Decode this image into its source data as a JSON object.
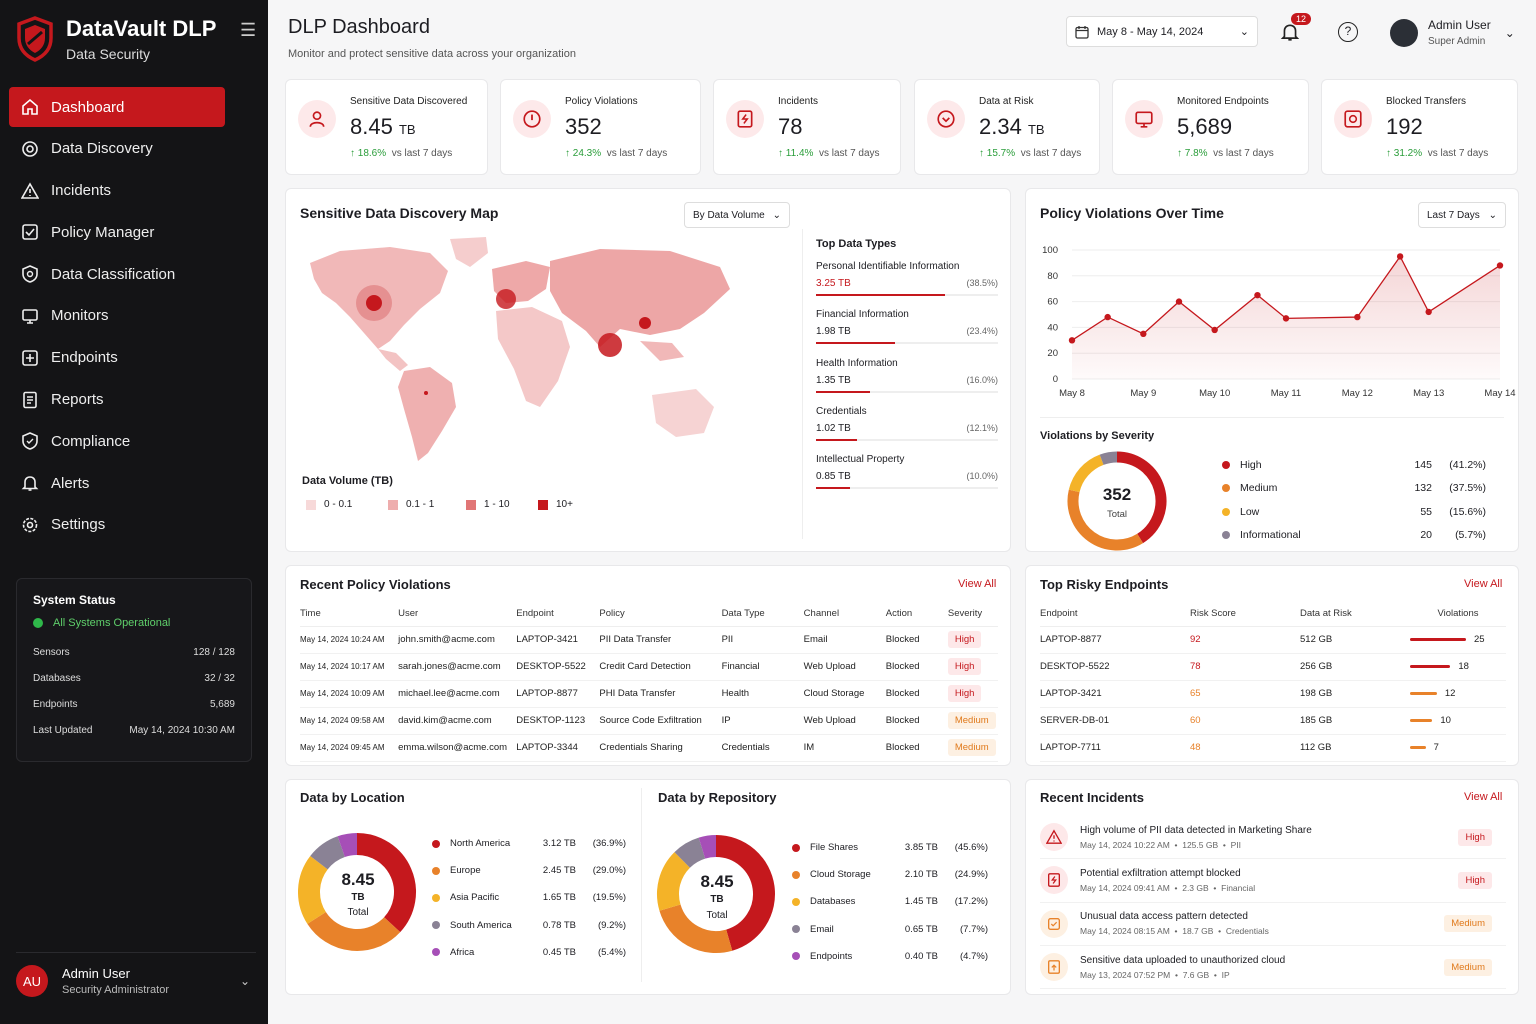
{
  "brand": {
    "title": "DataVault DLP",
    "subtitle": "Data Security"
  },
  "nav": [
    {
      "label": "Dashboard",
      "icon": "home-icon"
    },
    {
      "label": "Data Discovery",
      "icon": "discovery-icon"
    },
    {
      "label": "Incidents",
      "icon": "warning-icon"
    },
    {
      "label": "Policy Manager",
      "icon": "policy-icon"
    },
    {
      "label": "Data Classification",
      "icon": "classification-icon"
    },
    {
      "label": "Monitors",
      "icon": "monitor-icon"
    },
    {
      "label": "Endpoints",
      "icon": "endpoint-icon"
    },
    {
      "label": "Reports",
      "icon": "report-icon"
    },
    {
      "label": "Compliance",
      "icon": "compliance-icon"
    },
    {
      "label": "Alerts",
      "icon": "bell-icon"
    },
    {
      "label": "Settings",
      "icon": "gear-icon"
    }
  ],
  "system_status": {
    "title": "System Status",
    "state": "All Systems Operational",
    "rows": [
      [
        "Sensors",
        "128 / 128"
      ],
      [
        "Databases",
        "32 / 32"
      ],
      [
        "Endpoints",
        "5,689"
      ],
      [
        "Last Updated",
        "May 14, 2024 10:30 AM"
      ]
    ]
  },
  "sidebar_user": {
    "initials": "AU",
    "name": "Admin User",
    "role": "Security Administrator"
  },
  "header": {
    "title": "DLP Dashboard",
    "subtitle": "Monitor and protect sensitive data across your organization",
    "date_range": "May 8 - May 14, 2024",
    "notif_count": "12",
    "user_name": "Admin User",
    "user_role": "Super Admin"
  },
  "kpis": [
    {
      "label": "Sensitive Data Discovered",
      "value": "8.45",
      "unit": "TB",
      "trend": "18.6%",
      "trend_note": "vs last 7 days",
      "icon": "user-data-icon"
    },
    {
      "label": "Policy Violations",
      "value": "352",
      "unit": "",
      "trend": "24.3%",
      "trend_note": "vs last 7 days",
      "icon": "shield-alert-icon"
    },
    {
      "label": "Incidents",
      "value": "78",
      "unit": "",
      "trend": "11.4%",
      "trend_note": "vs last 7 days",
      "icon": "incident-file-icon"
    },
    {
      "label": "Data at Risk",
      "value": "2.34",
      "unit": "TB",
      "trend": "15.7%",
      "trend_note": "vs last 7 days",
      "icon": "risk-shield-icon"
    },
    {
      "label": "Monitored Endpoints",
      "value": "5,689",
      "unit": "",
      "trend": "7.8%",
      "trend_note": "vs last 7 days",
      "icon": "monitor-icon"
    },
    {
      "label": "Blocked Transfers",
      "value": "192",
      "unit": "",
      "trend": "31.2%",
      "trend_note": "vs last 7 days",
      "icon": "blocked-transfer-icon"
    }
  ],
  "map": {
    "title": "Sensitive Data Discovery Map",
    "selector": "By Data Volume",
    "legend_title": "Data Volume (TB)",
    "legend": [
      "0 - 0.1",
      "0.1 - 1",
      "1 - 10",
      "10+"
    ],
    "top_types_title": "Top Data Types",
    "top_types": [
      {
        "name": "Personal Identifiable Information",
        "value": "3.25 TB",
        "pct": "(38.5%)",
        "share": 38.5
      },
      {
        "name": "Financial Information",
        "value": "1.98 TB",
        "pct": "(23.4%)",
        "share": 23.4
      },
      {
        "name": "Health Information",
        "value": "1.35 TB",
        "pct": "(16.0%)",
        "share": 16.0
      },
      {
        "name": "Credentials",
        "value": "1.02 TB",
        "pct": "(12.1%)",
        "share": 12.1
      },
      {
        "name": "Intellectual Property",
        "value": "0.85 TB",
        "pct": "(10.0%)",
        "share": 10.0
      }
    ]
  },
  "chart_data": [
    {
      "type": "area",
      "title": "Policy Violations Over Time",
      "selector": "Last 7 Days",
      "categories": [
        "May 8",
        "May 9",
        "May 10",
        "May 11",
        "May 12",
        "May 13",
        "May 14"
      ],
      "x": [
        0,
        0.5,
        1,
        1.5,
        2,
        2.6,
        3,
        4,
        4.6,
        5,
        6
      ],
      "values": [
        30,
        48,
        35,
        60,
        38,
        65,
        47,
        48,
        95,
        52,
        88
      ],
      "ylim": [
        0,
        100
      ],
      "yticks": [
        0,
        20,
        40,
        60,
        80,
        100
      ],
      "color": "#c5181d"
    },
    {
      "type": "pie",
      "title": "Violations by Severity",
      "center_value": "352",
      "center_label": "Total",
      "series": [
        {
          "name": "High",
          "value": 145,
          "pct": "(41.2%)",
          "color": "#c5181d"
        },
        {
          "name": "Medium",
          "value": 132,
          "pct": "(37.5%)",
          "color": "#e8822a"
        },
        {
          "name": "Low",
          "value": 55,
          "pct": "(15.6%)",
          "color": "#f4b328"
        },
        {
          "name": "Informational",
          "value": 20,
          "pct": "(5.7%)",
          "color": "#8a8295"
        }
      ]
    },
    {
      "type": "pie",
      "title": "Data by Location",
      "center_value": "8.45",
      "center_unit": "TB",
      "center_label": "Total",
      "series": [
        {
          "name": "North America",
          "value": 3.12,
          "label": "3.12 TB",
          "pct": "(36.9%)",
          "color": "#c5181d"
        },
        {
          "name": "Europe",
          "value": 2.45,
          "label": "2.45 TB",
          "pct": "(29.0%)",
          "color": "#e8822a"
        },
        {
          "name": "Asia Pacific",
          "value": 1.65,
          "label": "1.65 TB",
          "pct": "(19.5%)",
          "color": "#f4b328"
        },
        {
          "name": "South America",
          "value": 0.78,
          "label": "0.78 TB",
          "pct": "(9.2%)",
          "color": "#8a8295"
        },
        {
          "name": "Africa",
          "value": 0.45,
          "label": "0.45 TB",
          "pct": "(5.4%)",
          "color": "#a64fb7"
        }
      ]
    },
    {
      "type": "pie",
      "title": "Data by Repository",
      "center_value": "8.45",
      "center_unit": "TB",
      "center_label": "Total",
      "series": [
        {
          "name": "File Shares",
          "value": 3.85,
          "label": "3.85 TB",
          "pct": "(45.6%)",
          "color": "#c5181d"
        },
        {
          "name": "Cloud Storage",
          "value": 2.1,
          "label": "2.10 TB",
          "pct": "(24.9%)",
          "color": "#e8822a"
        },
        {
          "name": "Databases",
          "value": 1.45,
          "label": "1.45 TB",
          "pct": "(17.2%)",
          "color": "#f4b328"
        },
        {
          "name": "Email",
          "value": 0.65,
          "label": "0.65 TB",
          "pct": "(7.7%)",
          "color": "#8a8295"
        },
        {
          "name": "Endpoints",
          "value": 0.4,
          "label": "0.40 TB",
          "pct": "(4.7%)",
          "color": "#a64fb7"
        }
      ]
    }
  ],
  "violations": {
    "title": "Recent Policy Violations",
    "view_all": "View All",
    "headers": [
      "Time",
      "User",
      "Endpoint",
      "Policy",
      "Data Type",
      "Channel",
      "Action",
      "Severity"
    ],
    "rows": [
      [
        "May 14, 2024 10:24 AM",
        "john.smith@acme.com",
        "LAPTOP-3421",
        "PII Data Transfer",
        "PII",
        "Email",
        "Blocked",
        "High"
      ],
      [
        "May 14, 2024 10:17 AM",
        "sarah.jones@acme.com",
        "DESKTOP-5522",
        "Credit Card Detection",
        "Financial",
        "Web Upload",
        "Blocked",
        "High"
      ],
      [
        "May 14, 2024 10:09 AM",
        "michael.lee@acme.com",
        "LAPTOP-8877",
        "PHI Data Transfer",
        "Health",
        "Cloud Storage",
        "Blocked",
        "High"
      ],
      [
        "May 14, 2024 09:58 AM",
        "david.kim@acme.com",
        "DESKTOP-1123",
        "Source Code Exfiltration",
        "IP",
        "Web Upload",
        "Blocked",
        "Medium"
      ],
      [
        "May 14, 2024 09:45 AM",
        "emma.wilson@acme.com",
        "LAPTOP-3344",
        "Credentials Sharing",
        "Credentials",
        "IM",
        "Blocked",
        "Medium"
      ]
    ]
  },
  "endpoints": {
    "title": "Top Risky Endpoints",
    "view_all": "View All",
    "headers": [
      "Endpoint",
      "Risk Score",
      "Data at Risk",
      "Violations"
    ],
    "rows": [
      [
        "LAPTOP-8877",
        "92",
        "512 GB",
        "25"
      ],
      [
        "DESKTOP-5522",
        "78",
        "256 GB",
        "18"
      ],
      [
        "LAPTOP-3421",
        "65",
        "198 GB",
        "12"
      ],
      [
        "SERVER-DB-01",
        "60",
        "185 GB",
        "10"
      ],
      [
        "LAPTOP-7711",
        "48",
        "112 GB",
        "7"
      ]
    ]
  },
  "incidents": {
    "title": "Recent Incidents",
    "view_all": "View All",
    "items": [
      {
        "title": "High volume of PII data detected in Marketing Share",
        "time": "May 14, 2024 10:22 AM",
        "size": "125.5 GB",
        "type": "PII",
        "sev": "High",
        "icon": "warning-icon"
      },
      {
        "title": "Potential exfiltration attempt blocked",
        "time": "May 14, 2024 09:41 AM",
        "size": "2.3 GB",
        "type": "Financial",
        "sev": "High",
        "icon": "incident-file-icon"
      },
      {
        "title": "Unusual data access pattern detected",
        "time": "May 14, 2024 08:15 AM",
        "size": "18.7 GB",
        "type": "Credentials",
        "sev": "Medium",
        "icon": "access-shield-icon"
      },
      {
        "title": "Sensitive data uploaded to unauthorized cloud",
        "time": "May 13, 2024 07:52 PM",
        "size": "7.6 GB",
        "type": "IP",
        "sev": "Medium",
        "icon": "upload-file-icon"
      }
    ]
  },
  "colors": {
    "accent": "#c5181d",
    "high": "#c5181d",
    "medium": "#e8822a",
    "low": "#f4b328",
    "info": "#8a8295"
  }
}
